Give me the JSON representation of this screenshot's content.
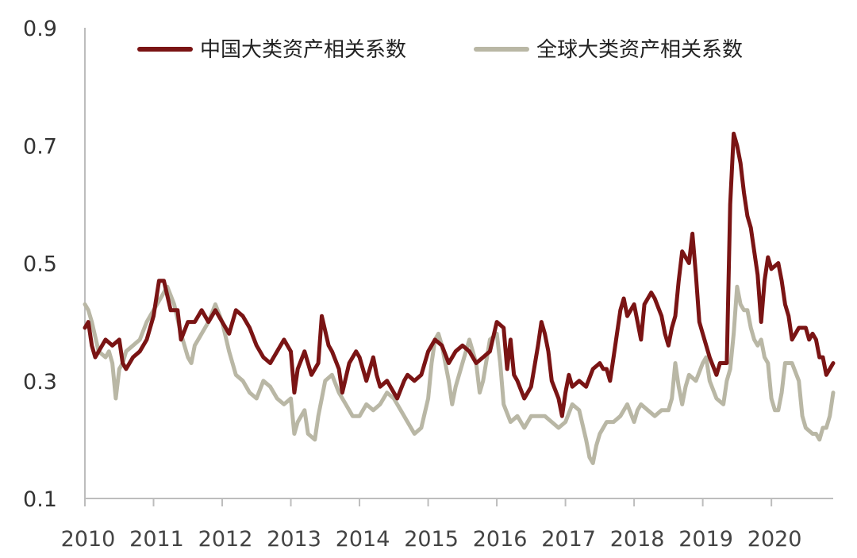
{
  "chart_data": {
    "type": "line",
    "title": "",
    "xlabel": "",
    "ylabel": "",
    "ylim": [
      0.1,
      0.9
    ],
    "xlim": [
      2010,
      2020.9
    ],
    "yticks": [
      "0.9",
      "0.7",
      "0.5",
      "0.3",
      "0.1"
    ],
    "xticks": [
      "2010",
      "2011",
      "2012",
      "2013",
      "2014",
      "2015",
      "2016",
      "2017",
      "2018",
      "2019",
      "2020"
    ],
    "legend_position": "top",
    "grid": false,
    "series": [
      {
        "name": "中国大类资产相关系数",
        "color": "#7a1414",
        "points": [
          [
            2010.0,
            0.39
          ],
          [
            2010.05,
            0.4
          ],
          [
            2010.1,
            0.36
          ],
          [
            2010.15,
            0.34
          ],
          [
            2010.2,
            0.35
          ],
          [
            2010.3,
            0.37
          ],
          [
            2010.4,
            0.36
          ],
          [
            2010.5,
            0.37
          ],
          [
            2010.55,
            0.33
          ],
          [
            2010.6,
            0.32
          ],
          [
            2010.7,
            0.34
          ],
          [
            2010.8,
            0.35
          ],
          [
            2010.9,
            0.37
          ],
          [
            2011.0,
            0.41
          ],
          [
            2011.08,
            0.47
          ],
          [
            2011.15,
            0.47
          ],
          [
            2011.25,
            0.42
          ],
          [
            2011.35,
            0.42
          ],
          [
            2011.4,
            0.37
          ],
          [
            2011.5,
            0.4
          ],
          [
            2011.6,
            0.4
          ],
          [
            2011.7,
            0.42
          ],
          [
            2011.8,
            0.4
          ],
          [
            2011.9,
            0.42
          ],
          [
            2012.0,
            0.4
          ],
          [
            2012.1,
            0.38
          ],
          [
            2012.2,
            0.42
          ],
          [
            2012.3,
            0.41
          ],
          [
            2012.4,
            0.39
          ],
          [
            2012.5,
            0.36
          ],
          [
            2012.6,
            0.34
          ],
          [
            2012.7,
            0.33
          ],
          [
            2012.8,
            0.35
          ],
          [
            2012.9,
            0.37
          ],
          [
            2013.0,
            0.35
          ],
          [
            2013.05,
            0.28
          ],
          [
            2013.1,
            0.32
          ],
          [
            2013.2,
            0.35
          ],
          [
            2013.3,
            0.31
          ],
          [
            2013.4,
            0.33
          ],
          [
            2013.45,
            0.41
          ],
          [
            2013.55,
            0.36
          ],
          [
            2013.6,
            0.35
          ],
          [
            2013.7,
            0.32
          ],
          [
            2013.75,
            0.28
          ],
          [
            2013.85,
            0.33
          ],
          [
            2013.95,
            0.35
          ],
          [
            2014.0,
            0.34
          ],
          [
            2014.1,
            0.3
          ],
          [
            2014.2,
            0.34
          ],
          [
            2014.25,
            0.31
          ],
          [
            2014.3,
            0.29
          ],
          [
            2014.4,
            0.3
          ],
          [
            2014.5,
            0.28
          ],
          [
            2014.55,
            0.27
          ],
          [
            2014.65,
            0.3
          ],
          [
            2014.7,
            0.31
          ],
          [
            2014.8,
            0.3
          ],
          [
            2014.9,
            0.31
          ],
          [
            2015.0,
            0.35
          ],
          [
            2015.1,
            0.37
          ],
          [
            2015.2,
            0.36
          ],
          [
            2015.3,
            0.33
          ],
          [
            2015.4,
            0.35
          ],
          [
            2015.5,
            0.36
          ],
          [
            2015.6,
            0.35
          ],
          [
            2015.7,
            0.33
          ],
          [
            2015.8,
            0.34
          ],
          [
            2015.9,
            0.35
          ],
          [
            2016.0,
            0.4
          ],
          [
            2016.1,
            0.39
          ],
          [
            2016.15,
            0.32
          ],
          [
            2016.2,
            0.37
          ],
          [
            2016.25,
            0.31
          ],
          [
            2016.3,
            0.3
          ],
          [
            2016.4,
            0.27
          ],
          [
            2016.5,
            0.29
          ],
          [
            2016.6,
            0.36
          ],
          [
            2016.65,
            0.4
          ],
          [
            2016.7,
            0.38
          ],
          [
            2016.75,
            0.35
          ],
          [
            2016.8,
            0.3
          ],
          [
            2016.9,
            0.27
          ],
          [
            2016.95,
            0.24
          ],
          [
            2017.0,
            0.28
          ],
          [
            2017.05,
            0.31
          ],
          [
            2017.1,
            0.29
          ],
          [
            2017.2,
            0.3
          ],
          [
            2017.3,
            0.29
          ],
          [
            2017.4,
            0.32
          ],
          [
            2017.5,
            0.33
          ],
          [
            2017.55,
            0.32
          ],
          [
            2017.6,
            0.32
          ],
          [
            2017.65,
            0.3
          ],
          [
            2017.7,
            0.34
          ],
          [
            2017.8,
            0.42
          ],
          [
            2017.85,
            0.44
          ],
          [
            2017.9,
            0.41
          ],
          [
            2018.0,
            0.43
          ],
          [
            2018.1,
            0.37
          ],
          [
            2018.15,
            0.43
          ],
          [
            2018.25,
            0.45
          ],
          [
            2018.3,
            0.44
          ],
          [
            2018.4,
            0.41
          ],
          [
            2018.45,
            0.38
          ],
          [
            2018.5,
            0.36
          ],
          [
            2018.55,
            0.39
          ],
          [
            2018.6,
            0.41
          ],
          [
            2018.65,
            0.47
          ],
          [
            2018.7,
            0.52
          ],
          [
            2018.8,
            0.5
          ],
          [
            2018.85,
            0.55
          ],
          [
            2018.9,
            0.48
          ],
          [
            2018.95,
            0.4
          ],
          [
            2019.0,
            0.38
          ],
          [
            2019.1,
            0.34
          ],
          [
            2019.2,
            0.31
          ],
          [
            2019.25,
            0.33
          ],
          [
            2019.35,
            0.33
          ],
          [
            2019.4,
            0.6
          ],
          [
            2019.45,
            0.72
          ],
          [
            2019.5,
            0.7
          ],
          [
            2019.55,
            0.67
          ],
          [
            2019.6,
            0.62
          ],
          [
            2019.65,
            0.58
          ],
          [
            2019.7,
            0.56
          ],
          [
            2019.75,
            0.52
          ],
          [
            2019.8,
            0.48
          ],
          [
            2019.85,
            0.4
          ],
          [
            2019.9,
            0.47
          ],
          [
            2019.95,
            0.51
          ],
          [
            2020.0,
            0.49
          ],
          [
            2020.1,
            0.5
          ],
          [
            2020.15,
            0.47
          ],
          [
            2020.2,
            0.43
          ],
          [
            2020.25,
            0.41
          ],
          [
            2020.3,
            0.37
          ],
          [
            2020.4,
            0.39
          ],
          [
            2020.5,
            0.39
          ],
          [
            2020.55,
            0.37
          ],
          [
            2020.6,
            0.38
          ],
          [
            2020.65,
            0.37
          ],
          [
            2020.7,
            0.34
          ],
          [
            2020.75,
            0.34
          ],
          [
            2020.8,
            0.31
          ],
          [
            2020.85,
            0.32
          ],
          [
            2020.9,
            0.33
          ]
        ]
      },
      {
        "name": "全球大类资产相关系数",
        "color": "#b9b7a5",
        "points": [
          [
            2010.0,
            0.43
          ],
          [
            2010.05,
            0.42
          ],
          [
            2010.1,
            0.4
          ],
          [
            2010.2,
            0.35
          ],
          [
            2010.3,
            0.34
          ],
          [
            2010.35,
            0.35
          ],
          [
            2010.4,
            0.33
          ],
          [
            2010.45,
            0.27
          ],
          [
            2010.5,
            0.32
          ],
          [
            2010.55,
            0.33
          ],
          [
            2010.6,
            0.35
          ],
          [
            2010.7,
            0.36
          ],
          [
            2010.8,
            0.37
          ],
          [
            2010.9,
            0.4
          ],
          [
            2011.0,
            0.42
          ],
          [
            2011.1,
            0.44
          ],
          [
            2011.2,
            0.46
          ],
          [
            2011.3,
            0.43
          ],
          [
            2011.4,
            0.38
          ],
          [
            2011.5,
            0.34
          ],
          [
            2011.55,
            0.33
          ],
          [
            2011.6,
            0.36
          ],
          [
            2011.7,
            0.38
          ],
          [
            2011.8,
            0.4
          ],
          [
            2011.9,
            0.43
          ],
          [
            2012.0,
            0.4
          ],
          [
            2012.1,
            0.35
          ],
          [
            2012.2,
            0.31
          ],
          [
            2012.3,
            0.3
          ],
          [
            2012.4,
            0.28
          ],
          [
            2012.5,
            0.27
          ],
          [
            2012.6,
            0.3
          ],
          [
            2012.7,
            0.29
          ],
          [
            2012.8,
            0.27
          ],
          [
            2012.9,
            0.26
          ],
          [
            2013.0,
            0.27
          ],
          [
            2013.05,
            0.21
          ],
          [
            2013.1,
            0.23
          ],
          [
            2013.2,
            0.25
          ],
          [
            2013.25,
            0.21
          ],
          [
            2013.35,
            0.2
          ],
          [
            2013.4,
            0.24
          ],
          [
            2013.45,
            0.27
          ],
          [
            2013.5,
            0.3
          ],
          [
            2013.6,
            0.31
          ],
          [
            2013.7,
            0.28
          ],
          [
            2013.8,
            0.26
          ],
          [
            2013.9,
            0.24
          ],
          [
            2014.0,
            0.24
          ],
          [
            2014.1,
            0.26
          ],
          [
            2014.2,
            0.25
          ],
          [
            2014.3,
            0.26
          ],
          [
            2014.4,
            0.28
          ],
          [
            2014.5,
            0.27
          ],
          [
            2014.6,
            0.25
          ],
          [
            2014.7,
            0.23
          ],
          [
            2014.8,
            0.21
          ],
          [
            2014.9,
            0.22
          ],
          [
            2015.0,
            0.27
          ],
          [
            2015.05,
            0.33
          ],
          [
            2015.1,
            0.37
          ],
          [
            2015.15,
            0.38
          ],
          [
            2015.2,
            0.36
          ],
          [
            2015.3,
            0.3
          ],
          [
            2015.35,
            0.26
          ],
          [
            2015.4,
            0.29
          ],
          [
            2015.5,
            0.33
          ],
          [
            2015.6,
            0.37
          ],
          [
            2015.7,
            0.33
          ],
          [
            2015.75,
            0.28
          ],
          [
            2015.8,
            0.3
          ],
          [
            2015.9,
            0.37
          ],
          [
            2016.0,
            0.38
          ],
          [
            2016.05,
            0.33
          ],
          [
            2016.1,
            0.26
          ],
          [
            2016.2,
            0.23
          ],
          [
            2016.3,
            0.24
          ],
          [
            2016.4,
            0.22
          ],
          [
            2016.5,
            0.24
          ],
          [
            2016.6,
            0.24
          ],
          [
            2016.7,
            0.24
          ],
          [
            2016.8,
            0.23
          ],
          [
            2016.9,
            0.22
          ],
          [
            2017.0,
            0.23
          ],
          [
            2017.1,
            0.26
          ],
          [
            2017.2,
            0.25
          ],
          [
            2017.3,
            0.2
          ],
          [
            2017.35,
            0.17
          ],
          [
            2017.4,
            0.16
          ],
          [
            2017.45,
            0.19
          ],
          [
            2017.5,
            0.21
          ],
          [
            2017.6,
            0.23
          ],
          [
            2017.7,
            0.23
          ],
          [
            2017.8,
            0.24
          ],
          [
            2017.9,
            0.26
          ],
          [
            2018.0,
            0.23
          ],
          [
            2018.05,
            0.25
          ],
          [
            2018.1,
            0.26
          ],
          [
            2018.2,
            0.25
          ],
          [
            2018.3,
            0.24
          ],
          [
            2018.4,
            0.25
          ],
          [
            2018.5,
            0.25
          ],
          [
            2018.55,
            0.27
          ],
          [
            2018.6,
            0.33
          ],
          [
            2018.65,
            0.29
          ],
          [
            2018.7,
            0.26
          ],
          [
            2018.75,
            0.29
          ],
          [
            2018.8,
            0.31
          ],
          [
            2018.9,
            0.3
          ],
          [
            2019.0,
            0.33
          ],
          [
            2019.05,
            0.34
          ],
          [
            2019.1,
            0.3
          ],
          [
            2019.2,
            0.27
          ],
          [
            2019.3,
            0.26
          ],
          [
            2019.35,
            0.3
          ],
          [
            2019.4,
            0.32
          ],
          [
            2019.45,
            0.38
          ],
          [
            2019.5,
            0.46
          ],
          [
            2019.55,
            0.43
          ],
          [
            2019.6,
            0.42
          ],
          [
            2019.65,
            0.42
          ],
          [
            2019.7,
            0.39
          ],
          [
            2019.75,
            0.37
          ],
          [
            2019.8,
            0.36
          ],
          [
            2019.85,
            0.37
          ],
          [
            2019.9,
            0.34
          ],
          [
            2019.95,
            0.33
          ],
          [
            2020.0,
            0.27
          ],
          [
            2020.05,
            0.25
          ],
          [
            2020.1,
            0.25
          ],
          [
            2020.15,
            0.28
          ],
          [
            2020.2,
            0.33
          ],
          [
            2020.3,
            0.33
          ],
          [
            2020.4,
            0.3
          ],
          [
            2020.45,
            0.24
          ],
          [
            2020.5,
            0.22
          ],
          [
            2020.6,
            0.21
          ],
          [
            2020.65,
            0.21
          ],
          [
            2020.7,
            0.2
          ],
          [
            2020.75,
            0.22
          ],
          [
            2020.8,
            0.22
          ],
          [
            2020.85,
            0.24
          ],
          [
            2020.9,
            0.28
          ]
        ]
      }
    ]
  }
}
